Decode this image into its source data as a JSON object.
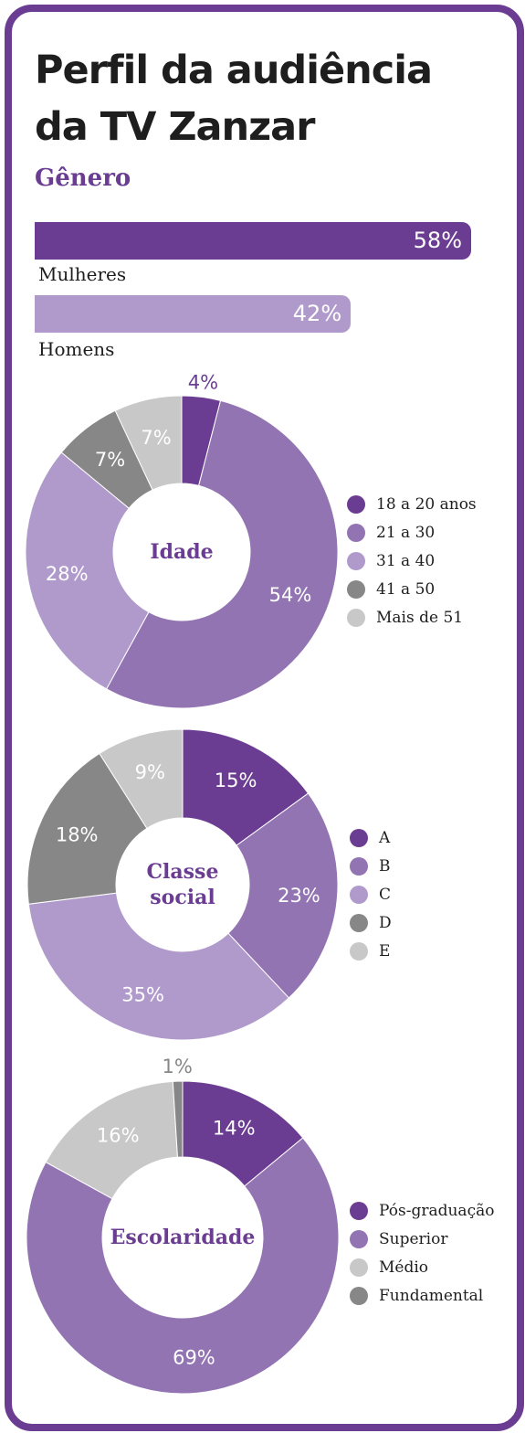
{
  "header": {
    "title_line1": "Perfil da audiência",
    "title_line2": "da TV Zanzar"
  },
  "chart_data": [
    {
      "type": "bar",
      "title": "Gênero",
      "categories": [
        "Mulheres",
        "Homens"
      ],
      "values": [
        58,
        42
      ],
      "value_labels": [
        "58%",
        "42%"
      ],
      "colors": [
        "#6b3d92",
        "#b09acb"
      ],
      "legend": "none"
    },
    {
      "type": "pie",
      "title": "Idade",
      "categories": [
        "18 a 20 anos",
        "21 a 30",
        "31 a 40",
        "41 a 50",
        "Mais de 51"
      ],
      "values": [
        4,
        54,
        28,
        7,
        7
      ],
      "value_labels": [
        "4%",
        "54%",
        "28%",
        "7%",
        "7%"
      ],
      "colors": [
        "#6b3d92",
        "#9274b3",
        "#b09acb",
        "#878787",
        "#c8c8c8"
      ],
      "legend": "right"
    },
    {
      "type": "pie",
      "title": "Classe social",
      "categories": [
        "A",
        "B",
        "C",
        "D",
        "E"
      ],
      "values": [
        15,
        23,
        35,
        18,
        9
      ],
      "value_labels": [
        "15%",
        "23%",
        "35%",
        "18%",
        "9%"
      ],
      "colors": [
        "#6b3d92",
        "#9274b3",
        "#b09acb",
        "#878787",
        "#c8c8c8"
      ],
      "legend": "right"
    },
    {
      "type": "pie",
      "title": "Escolaridade",
      "categories": [
        "Pós-graduação",
        "Superior",
        "Médio",
        "Fundamental"
      ],
      "values": [
        14,
        69,
        16,
        1
      ],
      "value_labels": [
        "14%",
        "69%",
        "16%",
        "1%"
      ],
      "colors": [
        "#6b3d92",
        "#9274b3",
        "#c8c8c8",
        "#878787"
      ],
      "legend": "right"
    }
  ]
}
